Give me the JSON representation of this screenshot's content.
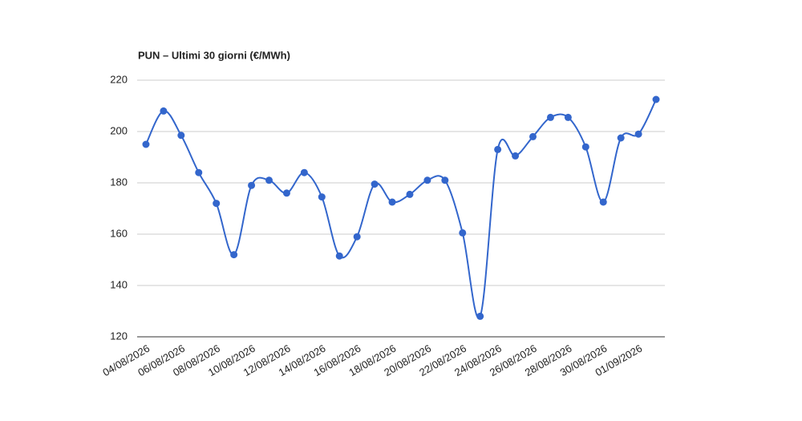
{
  "chart_data": {
    "type": "line",
    "title": "PUN – Ultimi 30 giorni (€/MWh)",
    "categories": [
      "04/08/2026",
      null,
      "06/08/2026",
      null,
      "08/08/2026",
      null,
      "10/08/2026",
      null,
      "12/08/2026",
      null,
      "14/08/2026",
      null,
      "16/08/2026",
      null,
      "18/08/2026",
      null,
      "20/08/2026",
      null,
      "22/08/2026",
      null,
      "24/08/2026",
      null,
      "26/08/2026",
      null,
      "28/08/2026",
      null,
      "30/08/2026",
      null,
      "01/09/2026",
      null
    ],
    "values": [
      195,
      208,
      198.5,
      184,
      172,
      152,
      179,
      181,
      176,
      184,
      174.5,
      151.5,
      159,
      179.5,
      172.5,
      175.5,
      181,
      181,
      160.5,
      128,
      193,
      190.5,
      198,
      205.5,
      205.5,
      194,
      172.5,
      197.5,
      199,
      212.5
    ],
    "color": "#3366cc",
    "ylim": [
      120,
      220
    ],
    "yticks": [
      120,
      140,
      160,
      180,
      200,
      220
    ],
    "grid": true
  }
}
